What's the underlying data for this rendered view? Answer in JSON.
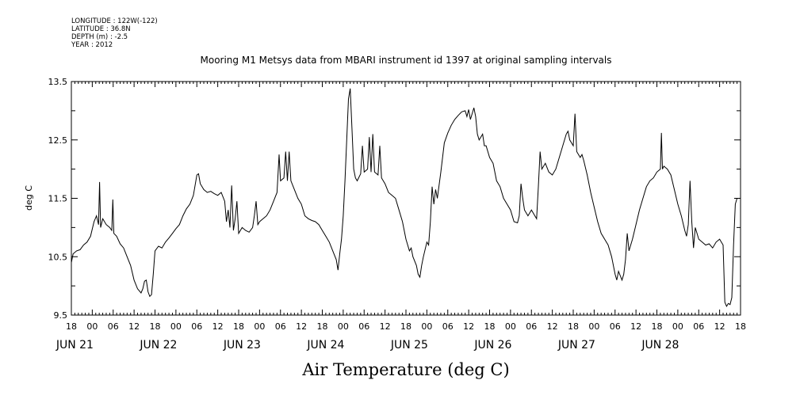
{
  "meta": {
    "lines": [
      "LONGITUDE : 122W(-122)",
      "LATITUDE : 36.8N",
      "DEPTH (m) : -2.5",
      "YEAR : 2012"
    ]
  },
  "chart_data": {
    "type": "line",
    "title": "Mooring M1 Metsys data from MBARI instrument id 1397 at original sampling intervals",
    "xlabel": "Air Temperature (deg C)",
    "ylabel": "deg C",
    "ylim": [
      9.5,
      13.5
    ],
    "yticks": [
      "9.5",
      "10.5",
      "11.5",
      "12.5",
      "13.5"
    ],
    "x_unit": "hours since JUN 21 00:00 (2012)",
    "xlim": [
      -6,
      186
    ],
    "hour_labels": [
      {
        "t": -6,
        "label": "18"
      },
      {
        "t": 0,
        "label": "00"
      },
      {
        "t": 6,
        "label": "06"
      },
      {
        "t": 12,
        "label": "12"
      },
      {
        "t": 18,
        "label": "18"
      },
      {
        "t": 24,
        "label": "00"
      },
      {
        "t": 30,
        "label": "06"
      },
      {
        "t": 36,
        "label": "12"
      },
      {
        "t": 42,
        "label": "18"
      },
      {
        "t": 48,
        "label": "00"
      },
      {
        "t": 54,
        "label": "06"
      },
      {
        "t": 60,
        "label": "12"
      },
      {
        "t": 66,
        "label": "18"
      },
      {
        "t": 72,
        "label": "00"
      },
      {
        "t": 78,
        "label": "06"
      },
      {
        "t": 84,
        "label": "12"
      },
      {
        "t": 90,
        "label": "18"
      },
      {
        "t": 96,
        "label": "00"
      },
      {
        "t": 102,
        "label": "06"
      },
      {
        "t": 108,
        "label": "12"
      },
      {
        "t": 114,
        "label": "18"
      },
      {
        "t": 120,
        "label": "00"
      },
      {
        "t": 126,
        "label": "06"
      },
      {
        "t": 132,
        "label": "12"
      },
      {
        "t": 138,
        "label": "18"
      },
      {
        "t": 144,
        "label": "00"
      },
      {
        "t": 150,
        "label": "06"
      },
      {
        "t": 156,
        "label": "12"
      },
      {
        "t": 162,
        "label": "18"
      },
      {
        "t": 168,
        "label": "00"
      },
      {
        "t": 174,
        "label": "06"
      },
      {
        "t": 180,
        "label": "12"
      },
      {
        "t": 186,
        "label": "18"
      }
    ],
    "date_labels": [
      {
        "t": 0,
        "label": "JUN 21"
      },
      {
        "t": 24,
        "label": "JUN 22"
      },
      {
        "t": 48,
        "label": "JUN 23"
      },
      {
        "t": 72,
        "label": "JUN 24"
      },
      {
        "t": 96,
        "label": "JUN 25"
      },
      {
        "t": 120,
        "label": "JUN 26"
      },
      {
        "t": 144,
        "label": "JUN 27"
      },
      {
        "t": 168,
        "label": "JUN 28"
      }
    ],
    "series": [
      {
        "values": [
          [
            -6,
            10.4
          ],
          [
            -5.5,
            10.55
          ],
          [
            -4.5,
            10.6
          ],
          [
            -3.5,
            10.62
          ],
          [
            -2.5,
            10.7
          ],
          [
            -1.5,
            10.75
          ],
          [
            -0.5,
            10.85
          ],
          [
            0.5,
            11.1
          ],
          [
            1.2,
            11.2
          ],
          [
            1.8,
            11.05
          ],
          [
            2.1,
            11.78
          ],
          [
            2.4,
            11.0
          ],
          [
            3,
            11.15
          ],
          [
            4,
            11.05
          ],
          [
            5,
            11.0
          ],
          [
            5.6,
            10.95
          ],
          [
            5.9,
            11.48
          ],
          [
            6.2,
            10.9
          ],
          [
            7,
            10.85
          ],
          [
            8,
            10.72
          ],
          [
            9,
            10.65
          ],
          [
            10,
            10.5
          ],
          [
            11,
            10.35
          ],
          [
            12,
            10.1
          ],
          [
            13,
            9.95
          ],
          [
            14,
            9.88
          ],
          [
            14.5,
            9.95
          ],
          [
            15,
            10.08
          ],
          [
            15.5,
            10.1
          ],
          [
            16,
            9.9
          ],
          [
            16.5,
            9.82
          ],
          [
            17,
            9.85
          ],
          [
            17.5,
            10.2
          ],
          [
            18,
            10.6
          ],
          [
            19,
            10.68
          ],
          [
            20,
            10.65
          ],
          [
            21,
            10.75
          ],
          [
            22,
            10.82
          ],
          [
            23,
            10.9
          ],
          [
            24,
            10.98
          ],
          [
            25,
            11.05
          ],
          [
            26,
            11.2
          ],
          [
            27,
            11.32
          ],
          [
            28,
            11.4
          ],
          [
            29,
            11.55
          ],
          [
            30,
            11.9
          ],
          [
            30.5,
            11.92
          ],
          [
            31,
            11.75
          ],
          [
            32,
            11.65
          ],
          [
            33,
            11.6
          ],
          [
            34,
            11.62
          ],
          [
            35,
            11.58
          ],
          [
            36,
            11.55
          ],
          [
            37,
            11.6
          ],
          [
            38,
            11.45
          ],
          [
            38.5,
            11.1
          ],
          [
            39,
            11.3
          ],
          [
            39.5,
            11.0
          ],
          [
            40,
            11.72
          ],
          [
            40.5,
            10.95
          ],
          [
            41,
            11.15
          ],
          [
            41.5,
            11.45
          ],
          [
            42,
            10.9
          ],
          [
            43,
            11.0
          ],
          [
            44,
            10.95
          ],
          [
            45,
            10.92
          ],
          [
            46,
            11.0
          ],
          [
            46.5,
            11.2
          ],
          [
            47,
            11.45
          ],
          [
            47.5,
            11.05
          ],
          [
            48,
            11.1
          ],
          [
            49,
            11.15
          ],
          [
            50,
            11.2
          ],
          [
            51,
            11.3
          ],
          [
            52,
            11.45
          ],
          [
            53,
            11.6
          ],
          [
            53.6,
            12.25
          ],
          [
            54,
            11.8
          ],
          [
            55,
            11.85
          ],
          [
            55.5,
            12.3
          ],
          [
            56,
            11.8
          ],
          [
            56.5,
            12.3
          ],
          [
            57,
            11.8
          ],
          [
            58,
            11.65
          ],
          [
            59,
            11.5
          ],
          [
            60,
            11.4
          ],
          [
            61,
            11.2
          ],
          [
            62,
            11.15
          ],
          [
            63,
            11.12
          ],
          [
            64,
            11.1
          ],
          [
            65,
            11.05
          ],
          [
            66,
            10.95
          ],
          [
            67,
            10.85
          ],
          [
            68,
            10.75
          ],
          [
            69,
            10.6
          ],
          [
            70,
            10.45
          ],
          [
            70.5,
            10.27
          ],
          [
            71,
            10.55
          ],
          [
            71.5,
            10.8
          ],
          [
            72,
            11.2
          ],
          [
            72.5,
            11.8
          ],
          [
            73,
            12.5
          ],
          [
            73.5,
            13.2
          ],
          [
            74,
            13.38
          ],
          [
            74.5,
            12.7
          ],
          [
            75,
            12.0
          ],
          [
            75.5,
            11.85
          ],
          [
            76,
            11.8
          ],
          [
            77,
            11.92
          ],
          [
            77.5,
            12.4
          ],
          [
            78,
            11.95
          ],
          [
            79,
            12.0
          ],
          [
            79.5,
            12.55
          ],
          [
            80,
            11.95
          ],
          [
            80.5,
            12.6
          ],
          [
            81,
            11.95
          ],
          [
            82,
            11.9
          ],
          [
            82.5,
            12.4
          ],
          [
            83,
            11.85
          ],
          [
            84,
            11.75
          ],
          [
            85,
            11.6
          ],
          [
            86,
            11.55
          ],
          [
            87,
            11.5
          ],
          [
            88,
            11.3
          ],
          [
            89,
            11.1
          ],
          [
            90,
            10.8
          ],
          [
            91,
            10.6
          ],
          [
            91.5,
            10.65
          ],
          [
            92,
            10.5
          ],
          [
            93,
            10.35
          ],
          [
            93.5,
            10.2
          ],
          [
            94,
            10.15
          ],
          [
            94.5,
            10.35
          ],
          [
            95,
            10.5
          ],
          [
            96,
            10.75
          ],
          [
            96.5,
            10.7
          ],
          [
            97,
            11.1
          ],
          [
            97.5,
            11.7
          ],
          [
            98,
            11.4
          ],
          [
            98.5,
            11.65
          ],
          [
            99,
            11.5
          ],
          [
            100,
            11.95
          ],
          [
            101,
            12.45
          ],
          [
            102,
            12.62
          ],
          [
            103,
            12.75
          ],
          [
            104,
            12.85
          ],
          [
            105,
            12.92
          ],
          [
            106,
            12.98
          ],
          [
            107,
            13.0
          ],
          [
            107.5,
            12.9
          ],
          [
            108,
            13.02
          ],
          [
            108.5,
            12.85
          ],
          [
            109,
            12.95
          ],
          [
            109.5,
            13.05
          ],
          [
            110,
            12.9
          ],
          [
            110.5,
            12.6
          ],
          [
            111,
            12.5
          ],
          [
            111.5,
            12.55
          ],
          [
            112,
            12.6
          ],
          [
            112.5,
            12.4
          ],
          [
            113,
            12.4
          ],
          [
            114,
            12.2
          ],
          [
            115,
            12.1
          ],
          [
            116,
            11.8
          ],
          [
            117,
            11.7
          ],
          [
            118,
            11.5
          ],
          [
            119,
            11.4
          ],
          [
            120,
            11.3
          ],
          [
            121,
            11.1
          ],
          [
            122,
            11.08
          ],
          [
            122.5,
            11.2
          ],
          [
            123,
            11.75
          ],
          [
            123.5,
            11.5
          ],
          [
            124,
            11.3
          ],
          [
            125,
            11.2
          ],
          [
            126,
            11.3
          ],
          [
            127,
            11.2
          ],
          [
            127.5,
            11.15
          ],
          [
            128,
            11.7
          ],
          [
            128.5,
            12.3
          ],
          [
            129,
            12.0
          ],
          [
            130,
            12.1
          ],
          [
            131,
            11.95
          ],
          [
            132,
            11.9
          ],
          [
            133,
            12.0
          ],
          [
            134,
            12.2
          ],
          [
            135,
            12.4
          ],
          [
            136,
            12.6
          ],
          [
            136.5,
            12.65
          ],
          [
            137,
            12.5
          ],
          [
            138,
            12.4
          ],
          [
            138.5,
            12.95
          ],
          [
            139,
            12.3
          ],
          [
            140,
            12.2
          ],
          [
            140.5,
            12.25
          ],
          [
            141,
            12.15
          ],
          [
            142,
            11.9
          ],
          [
            143,
            11.6
          ],
          [
            144,
            11.35
          ],
          [
            145,
            11.1
          ],
          [
            146,
            10.9
          ],
          [
            147,
            10.8
          ],
          [
            148,
            10.7
          ],
          [
            149,
            10.5
          ],
          [
            150,
            10.2
          ],
          [
            150.5,
            10.1
          ],
          [
            151,
            10.25
          ],
          [
            152,
            10.1
          ],
          [
            152.5,
            10.2
          ],
          [
            153,
            10.45
          ],
          [
            153.5,
            10.9
          ],
          [
            154,
            10.6
          ],
          [
            155,
            10.8
          ],
          [
            156,
            11.05
          ],
          [
            157,
            11.3
          ],
          [
            158,
            11.5
          ],
          [
            159,
            11.7
          ],
          [
            160,
            11.8
          ],
          [
            161,
            11.85
          ],
          [
            162,
            11.95
          ],
          [
            163,
            12.0
          ],
          [
            163.3,
            12.62
          ],
          [
            163.6,
            12.0
          ],
          [
            164,
            12.05
          ],
          [
            165,
            12.0
          ],
          [
            166,
            11.9
          ],
          [
            167,
            11.65
          ],
          [
            168,
            11.4
          ],
          [
            169,
            11.2
          ],
          [
            170,
            10.95
          ],
          [
            170.5,
            10.85
          ],
          [
            171,
            11.05
          ],
          [
            171.5,
            11.8
          ],
          [
            172,
            11.1
          ],
          [
            172.5,
            10.65
          ],
          [
            173,
            11.0
          ],
          [
            174,
            10.8
          ],
          [
            175,
            10.75
          ],
          [
            176,
            10.7
          ],
          [
            177,
            10.72
          ],
          [
            178,
            10.65
          ],
          [
            179,
            10.75
          ],
          [
            180,
            10.8
          ],
          [
            181,
            10.7
          ],
          [
            181.5,
            9.72
          ],
          [
            182,
            9.65
          ],
          [
            182.5,
            9.7
          ],
          [
            183,
            9.68
          ],
          [
            183.5,
            9.8
          ],
          [
            184,
            10.7
          ],
          [
            184.5,
            11.4
          ],
          [
            185,
            11.5
          ]
        ]
      }
    ]
  }
}
